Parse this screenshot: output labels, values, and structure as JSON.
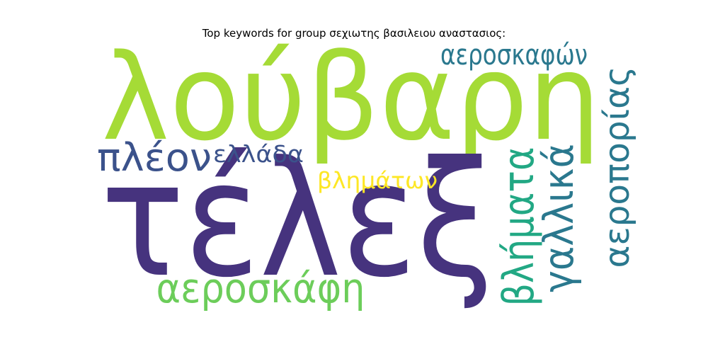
{
  "title": "Top keywords for group σεχιωτης βασιλειου αναστασιος:",
  "words": [
    {
      "text": "λούβαρη",
      "color": "#a5db36",
      "orientation": "horizontal"
    },
    {
      "text": "τέλεξ",
      "color": "#46337e",
      "orientation": "horizontal"
    },
    {
      "text": "αεροσκαφών",
      "color": "#2a788e",
      "orientation": "horizontal"
    },
    {
      "text": "πλέον",
      "color": "#3b528b",
      "orientation": "horizontal"
    },
    {
      "text": "ελλάδα",
      "color": "#3b528b",
      "orientation": "horizontal"
    },
    {
      "text": "βλημάτων",
      "color": "#fde725",
      "orientation": "horizontal"
    },
    {
      "text": "αεροσκάφη",
      "color": "#6ccd5a",
      "orientation": "horizontal"
    },
    {
      "text": "βλήματα",
      "color": "#22a884",
      "orientation": "vertical"
    },
    {
      "text": "γαλλικά",
      "color": "#2a788e",
      "orientation": "vertical"
    },
    {
      "text": "αεροπορίας",
      "color": "#2a788e",
      "orientation": "vertical"
    }
  ]
}
